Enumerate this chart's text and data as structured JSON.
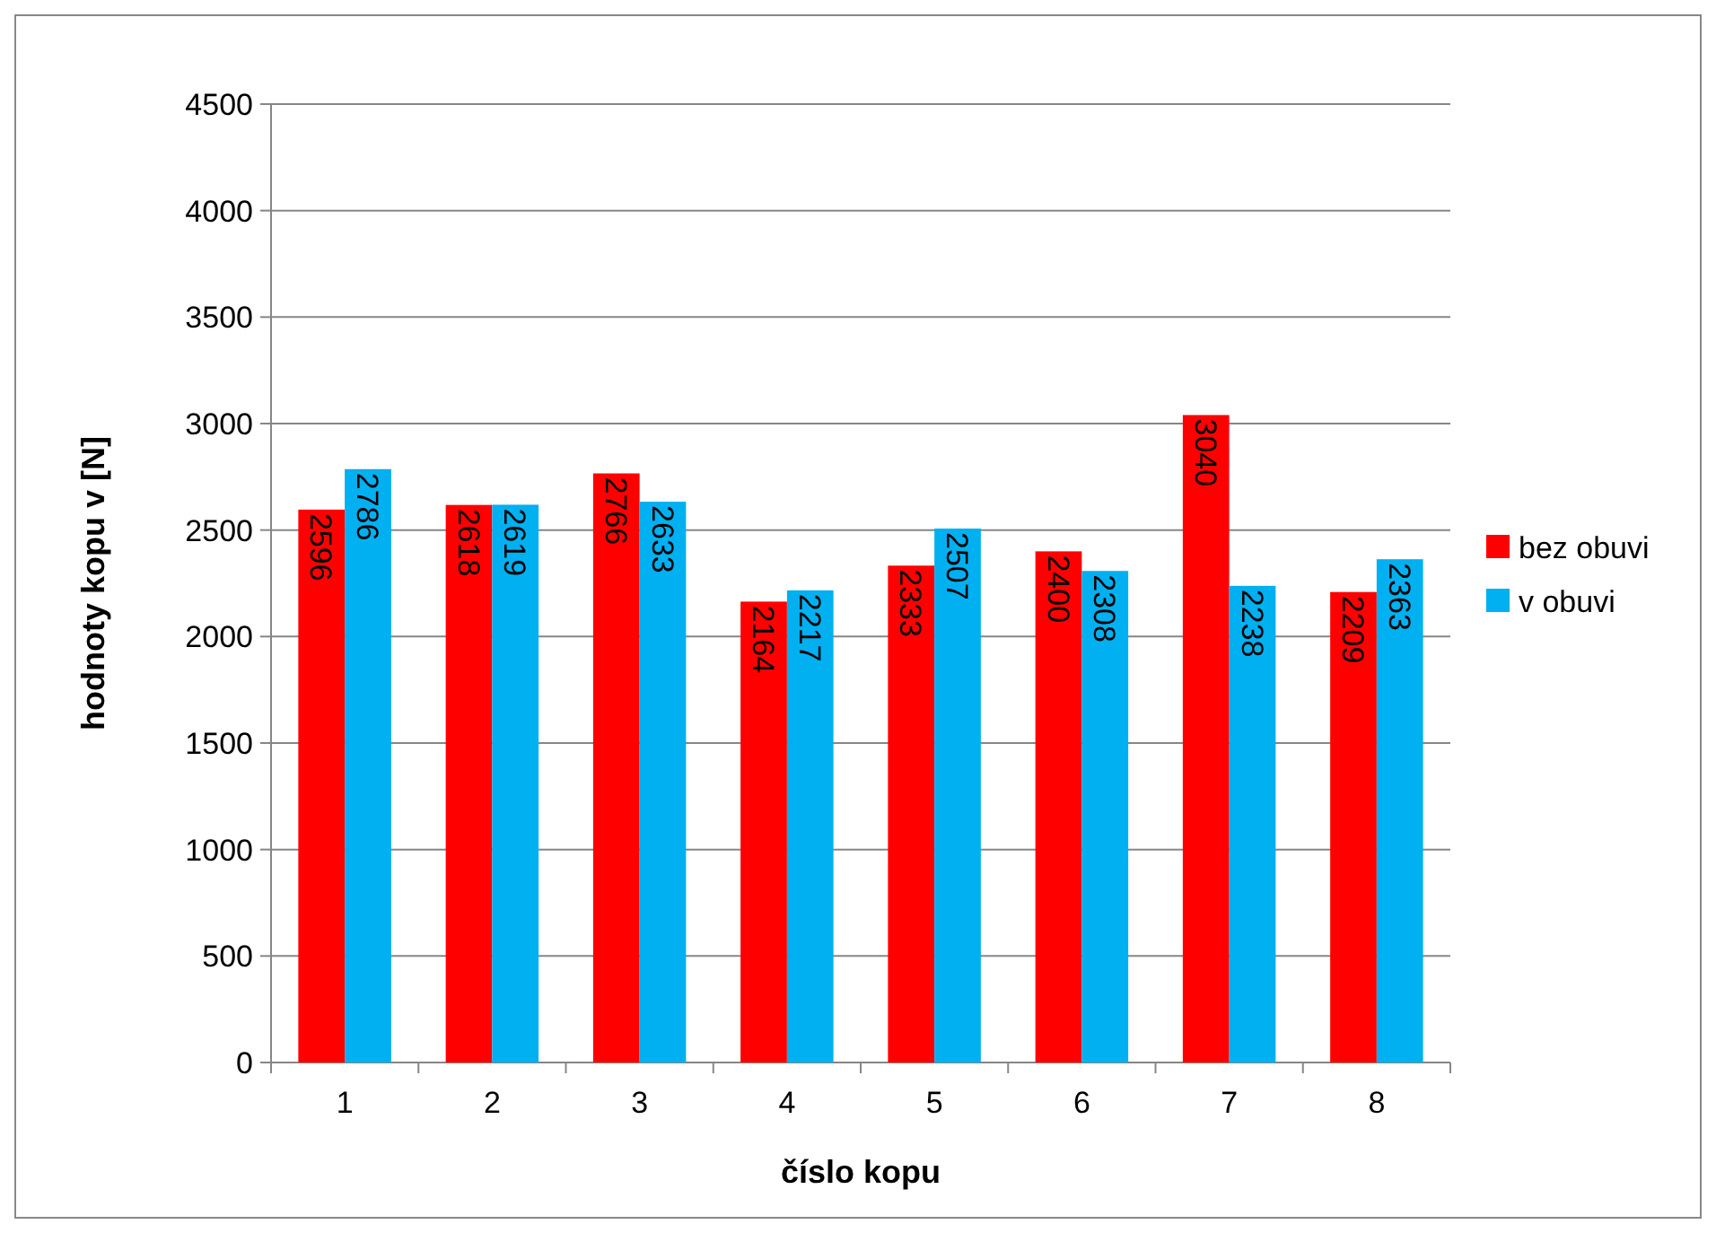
{
  "chart_data": {
    "type": "bar",
    "xlabel": "číslo kopu",
    "ylabel": "hodnoty kopu v [N]",
    "categories": [
      "1",
      "2",
      "3",
      "4",
      "5",
      "6",
      "7",
      "8"
    ],
    "series": [
      {
        "name": "bez obuvi",
        "color": "#ff0000",
        "values": [
          2596,
          2618,
          2766,
          2164,
          2333,
          2400,
          3040,
          2209
        ]
      },
      {
        "name": "v obuvi",
        "color": "#00b0f0",
        "values": [
          2786,
          2619,
          2633,
          2217,
          2507,
          2308,
          2238,
          2363
        ]
      }
    ],
    "ylim": [
      0,
      4500
    ],
    "yticks": [
      0,
      500,
      1000,
      1500,
      2000,
      2500,
      3000,
      3500,
      4000,
      4500
    ],
    "grid": "y",
    "legend": "right",
    "data_labels": true
  }
}
